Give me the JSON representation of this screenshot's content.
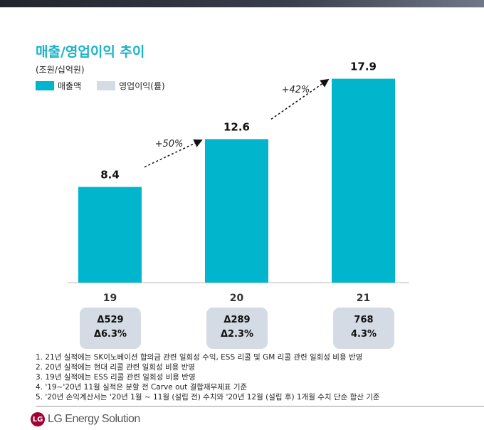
{
  "title": "매출/영업이익 추이",
  "unit": "(조원/십억원)",
  "legend": [
    {
      "label": "매출액",
      "color": "#00b5cc"
    },
    {
      "label": "영업이익(률)",
      "color": "#d5dbe4"
    }
  ],
  "chart_data": {
    "type": "bar",
    "categories": [
      "19",
      "20",
      "21"
    ],
    "series": [
      {
        "name": "매출액",
        "values": [
          8.4,
          12.6,
          17.9
        ]
      }
    ],
    "data_labels": [
      "8.4",
      "12.6",
      "17.9"
    ],
    "growth_annotations": [
      "+50%",
      "+42%"
    ],
    "operating_profit": [
      {
        "value": "Δ529",
        "margin": "Δ6.3%"
      },
      {
        "value": "Δ289",
        "margin": "Δ2.3%"
      },
      {
        "value": "768",
        "margin": "4.3%"
      }
    ],
    "ylim": [
      0,
      19
    ],
    "grid": false,
    "bar_color": "#00b5cc"
  },
  "notes": [
    "1. 21년 실적에는 SK이노베이션 합의금 관련 일회성 수익, ESS 리콜 및 GM 리콜 관련 일회성 비용 반영",
    "2. 20년 실적에는 현대 리콜 관련 일회성 비용 반영",
    "3. 19년 실적에는 ESS 리콜 관련 일회성 비용 반영",
    "4. '19~'20년 11월 실적은 분할 전 Carve out 결합재무제표 기준",
    "5. '20년 손익계산서는 '20년 1월 ~ 11월 (설립 전) 수치와 '20년 12월 (설립 후) 1개월 수치 단순 합산 기준"
  ],
  "logo": "LG Energy Solution"
}
